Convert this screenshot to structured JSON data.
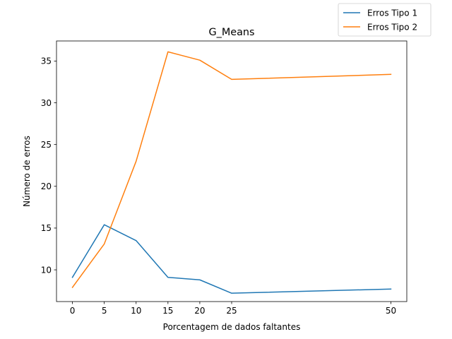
{
  "chart_data": {
    "type": "line",
    "title": "G_Means",
    "xlabel": "Porcentagem de dados faltantes",
    "ylabel": "Número de erros",
    "x": [
      0,
      5,
      10,
      15,
      20,
      25,
      50
    ],
    "xticks": [
      "0",
      "5",
      "10",
      "15",
      "20",
      "25",
      "50"
    ],
    "xlim": [
      -2.5,
      52.5
    ],
    "yticks": [
      "10",
      "15",
      "20",
      "25",
      "30",
      "35"
    ],
    "ylim": [
      6.2,
      37.4
    ],
    "grid": false,
    "legend": "upper-right-outside",
    "series": [
      {
        "name": "Erros Tipo 1",
        "color": "#1f77b4",
        "values": [
          9.1,
          15.4,
          13.5,
          9.1,
          8.8,
          7.2,
          7.7
        ]
      },
      {
        "name": "Erros Tipo 2",
        "color": "#ff7f0e",
        "values": [
          7.9,
          13.1,
          23.0,
          36.1,
          35.1,
          32.8,
          33.4
        ]
      }
    ]
  }
}
